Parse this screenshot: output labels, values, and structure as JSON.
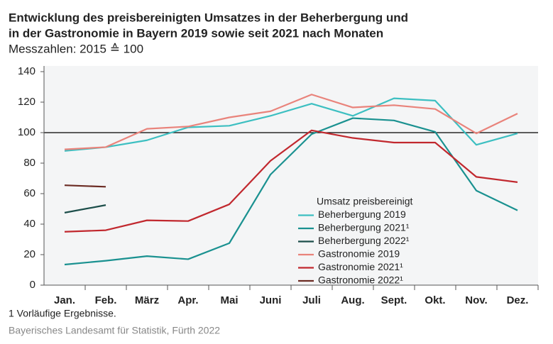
{
  "chart_data": {
    "type": "line",
    "title": [
      "Entwicklung des preisbereinigten Umsatzes in der Beherbergung und",
      "in der Gastronomie in Bayern 2019 sowie seit 2021 nach Monaten"
    ],
    "subtitle": "Messzahlen: 2015 ≙ 100",
    "categories": [
      "Jan.",
      "Feb.",
      "März",
      "Apr.",
      "Mai",
      "Juni",
      "Juli",
      "Aug.",
      "Sept.",
      "Okt.",
      "Nov.",
      "Dez."
    ],
    "ylim": [
      0,
      140
    ],
    "yticks": [
      0,
      20,
      40,
      60,
      80,
      100,
      120,
      140
    ],
    "reference_line": 100,
    "grid": false,
    "legend_title": "Umsatz preisbereinigt",
    "legend_position": "bottom-center",
    "series": [
      {
        "name": "Beherbergung 2019",
        "color": "#3cbfc1",
        "values": [
          88,
          90.5,
          95,
          103.5,
          104.5,
          111,
          119,
          111,
          122.5,
          121,
          92,
          99.5
        ]
      },
      {
        "name": "Beherbergung 2021¹",
        "color": "#1a9190",
        "values": [
          13.5,
          16,
          19,
          17,
          27.5,
          72.5,
          99,
          109.5,
          108,
          100.5,
          62,
          49
        ]
      },
      {
        "name": "Beherbergung 2022¹",
        "color": "#1c4e4a",
        "values": [
          47.5,
          52.5,
          null,
          null,
          null,
          null,
          null,
          null,
          null,
          null,
          null,
          null
        ]
      },
      {
        "name": "Gastronomie 2019",
        "color": "#e9837b",
        "values": [
          89,
          90.5,
          102.5,
          104,
          110,
          114,
          125,
          116.5,
          118,
          115.5,
          99.5,
          112.5
        ]
      },
      {
        "name": "Gastronomie 2021¹",
        "color": "#c1282e",
        "values": [
          35,
          36,
          42.5,
          42,
          53,
          81.5,
          101.5,
          96.5,
          93.5,
          93.5,
          71,
          67.5
        ]
      },
      {
        "name": "Gastronomie 2022¹",
        "color": "#6b2b23",
        "values": [
          65.5,
          64.5,
          null,
          null,
          null,
          null,
          null,
          null,
          null,
          null,
          null,
          null
        ]
      }
    ],
    "footnote": "1  Vorläufige Ergebnisse.",
    "source": "Bayerisches Landesamt für Statistik, Fürth 2022"
  }
}
